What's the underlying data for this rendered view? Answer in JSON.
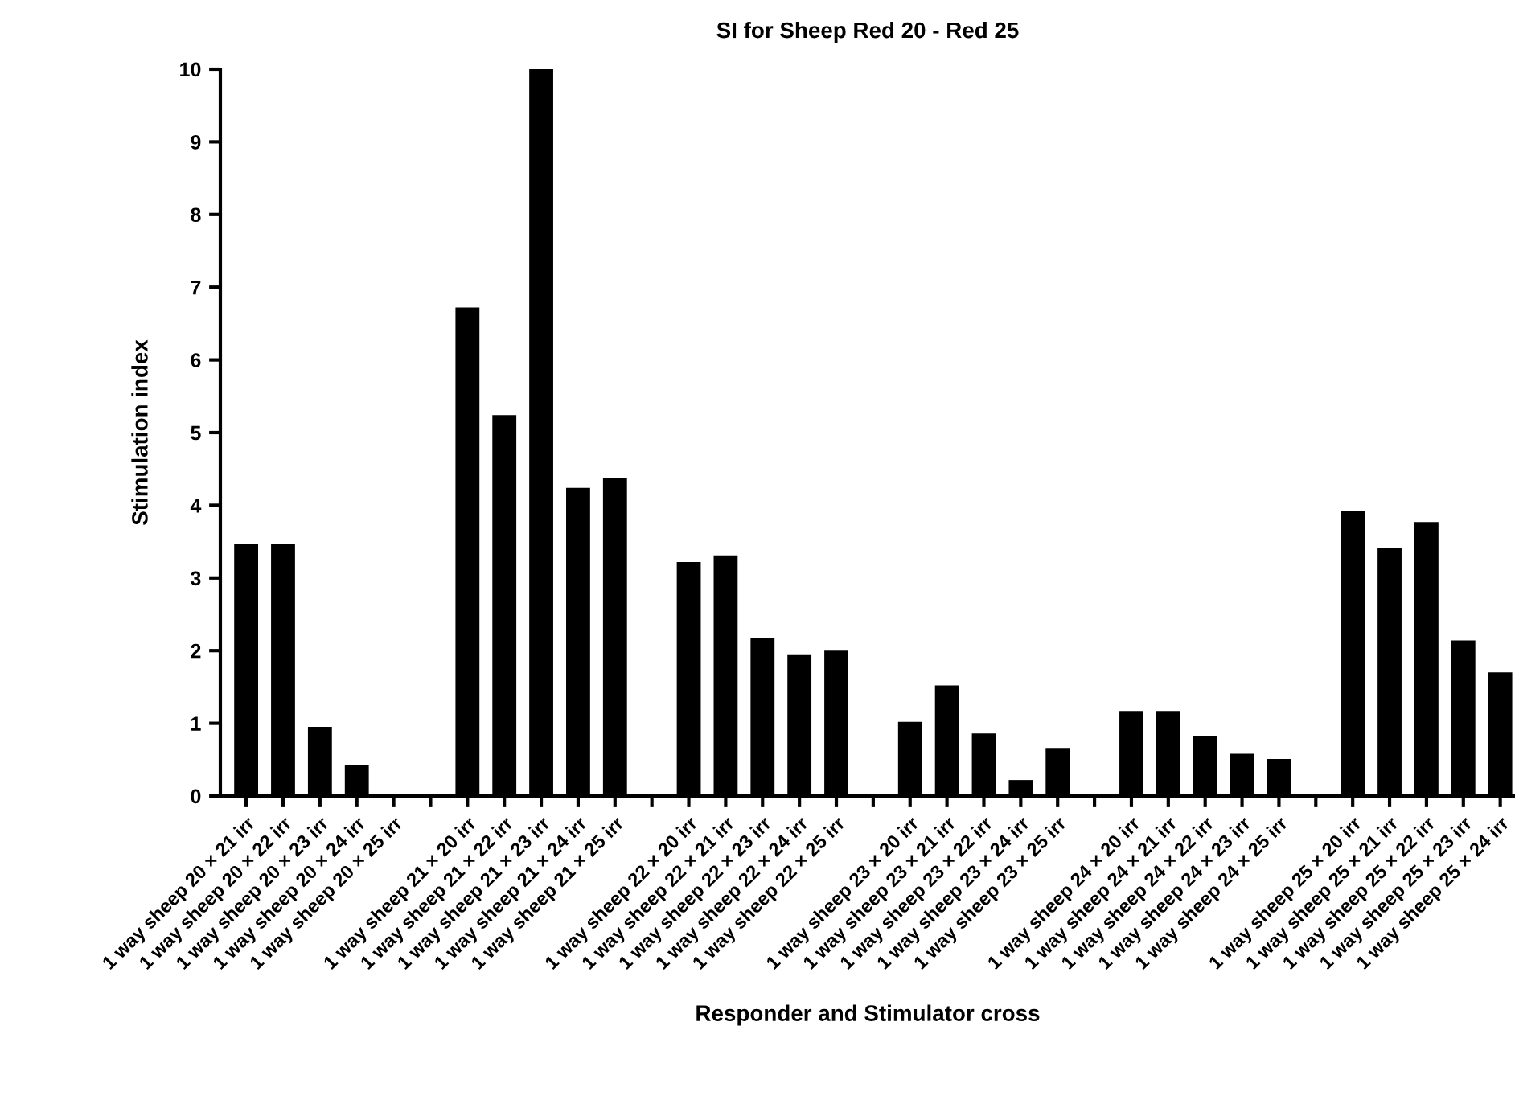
{
  "chart_data": {
    "type": "bar",
    "title": "SI for Sheep Red 20 - Red 25",
    "xlabel": "Responder and Stimulator cross",
    "ylabel": "Stimulation index",
    "categories": [
      "1 way sheep 20 × 21 irr",
      "1 way sheep 20 × 22 irr",
      "1 way sheep 20 × 23 irr",
      "1 way sheep 20 × 24 irr",
      "1 way sheep 20 × 25 irr",
      null,
      "1 way sheep 21 × 20 irr",
      "1 way sheep 21 × 22 irr",
      "1 way sheep 21 × 23 irr",
      "1 way sheep 21 × 24 irr",
      "1 way sheep 21 × 25 irr",
      null,
      "1 way sheep 22 × 20 irr",
      "1 way sheep 22 × 21 irr",
      "1 way sheep 22 × 23 irr",
      "1 way sheep 22 × 24 irr",
      "1 way sheep 22 × 25 irr",
      null,
      "1 way sheep 23 × 20 irr",
      "1 way sheep 23 × 21 irr",
      "1 way sheep 23 × 22 irr",
      "1 way sheep 23 × 24 irr",
      "1 way sheep 23 × 25 irr",
      null,
      "1 way sheep 24 × 20 irr",
      "1 way sheep 24 × 21 irr",
      "1 way sheep 24 × 22 irr",
      "1 way sheep 24 × 23 irr",
      "1 way sheep 24 × 25 irr",
      null,
      "1 way sheep 25 × 20 irr",
      "1 way sheep 25 × 21 irr",
      "1 way sheep 25 × 22 irr",
      "1 way sheep 25 × 23 irr",
      "1 way sheep 25 × 24 irr"
    ],
    "values": [
      3.47,
      3.47,
      0.95,
      0.42,
      0,
      null,
      6.72,
      5.24,
      10,
      4.24,
      4.37,
      null,
      3.22,
      3.31,
      2.17,
      1.95,
      2.0,
      null,
      1.02,
      1.52,
      0.86,
      0.22,
      0.66,
      null,
      1.17,
      1.17,
      0.83,
      0.58,
      0.51,
      null,
      3.92,
      3.41,
      3.77,
      2.14,
      1.7
    ],
    "color": "#000000",
    "ylim": [
      0,
      10
    ],
    "yticks": [
      0,
      1,
      2,
      3,
      4,
      5,
      6,
      7,
      8,
      9,
      10
    ],
    "grid": false,
    "legend": false
  }
}
